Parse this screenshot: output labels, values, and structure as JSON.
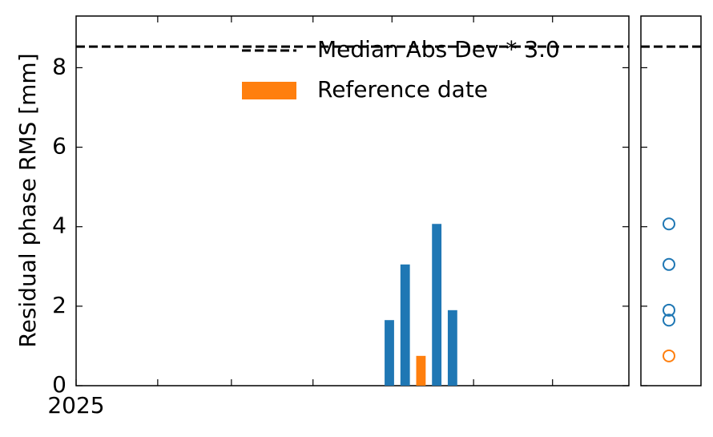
{
  "chart_data": {
    "type": "bar",
    "ylabel": "Residual phase RMS [mm]",
    "series": [
      {
        "x": [
          119,
          125,
          137,
          143
        ],
        "values": [
          1.65,
          3.05,
          4.07,
          1.9
        ],
        "color": "#1f77b4"
      },
      {
        "name": "Reference date",
        "x": [
          131
        ],
        "values": [
          0.75
        ],
        "color": "#ff7f0e"
      }
    ],
    "threshold": {
      "name": "Median Abs Dev * 3.0",
      "value": 8.53,
      "color": "#000000"
    },
    "xlim": [
      0,
      210
    ],
    "xticks": [
      {
        "value": 0,
        "label": "2025"
      }
    ],
    "xminor_ticks": [
      31,
      59,
      90,
      120,
      151,
      181
    ],
    "ylim": [
      0,
      9.3
    ],
    "yticks": [
      0,
      2,
      4,
      6,
      8
    ],
    "bar_width": 3.6,
    "legend": "top"
  }
}
